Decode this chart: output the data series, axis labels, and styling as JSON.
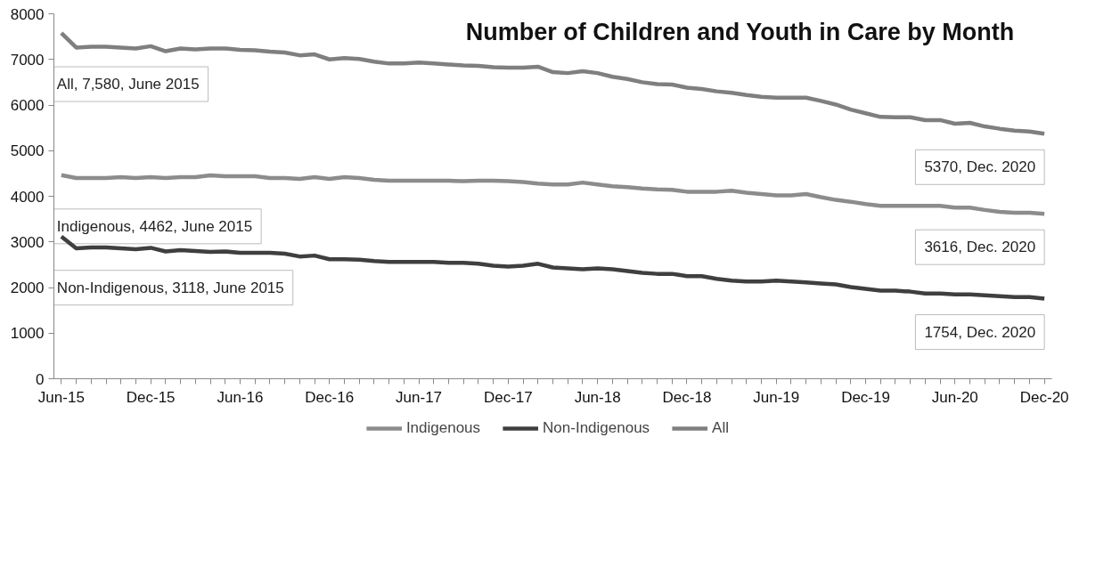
{
  "chart_data": {
    "type": "line",
    "title": "Number of Children and Youth in Care by Month",
    "categories": [
      "Jun-15",
      null,
      null,
      null,
      null,
      null,
      "Dec-15",
      null,
      null,
      null,
      null,
      null,
      "Jun-16",
      null,
      null,
      null,
      null,
      null,
      "Dec-16",
      null,
      null,
      null,
      null,
      null,
      "Jun-17",
      null,
      null,
      null,
      null,
      null,
      "Dec-17",
      null,
      null,
      null,
      null,
      null,
      "Jun-18",
      null,
      null,
      null,
      null,
      null,
      "Dec-18",
      null,
      null,
      null,
      null,
      null,
      "Jun-19",
      null,
      null,
      null,
      null,
      null,
      "Dec-19",
      null,
      null,
      null,
      null,
      null,
      "Jun-20",
      null,
      null,
      null,
      null,
      null,
      "Dec-20"
    ],
    "series": [
      {
        "name": "Indigenous",
        "color": "#8c8c8c",
        "values": [
          4462,
          4400,
          4400,
          4400,
          4420,
          4400,
          4420,
          4400,
          4420,
          4420,
          4460,
          4440,
          4440,
          4440,
          4400,
          4400,
          4380,
          4420,
          4380,
          4420,
          4400,
          4360,
          4340,
          4340,
          4340,
          4340,
          4340,
          4330,
          4340,
          4340,
          4330,
          4310,
          4280,
          4260,
          4260,
          4300,
          4260,
          4220,
          4200,
          4170,
          4150,
          4140,
          4100,
          4100,
          4100,
          4120,
          4080,
          4050,
          4020,
          4020,
          4050,
          3980,
          3920,
          3880,
          3830,
          3790,
          3790,
          3790,
          3790,
          3790,
          3750,
          3750,
          3700,
          3660,
          3640,
          3640,
          3616
        ]
      },
      {
        "name": "Non-Indigenous",
        "color": "#3f3f3f",
        "values": [
          3118,
          2860,
          2880,
          2880,
          2860,
          2840,
          2870,
          2790,
          2820,
          2800,
          2780,
          2790,
          2760,
          2760,
          2760,
          2740,
          2680,
          2700,
          2620,
          2620,
          2610,
          2580,
          2560,
          2560,
          2560,
          2560,
          2540,
          2540,
          2520,
          2480,
          2460,
          2480,
          2520,
          2440,
          2420,
          2400,
          2420,
          2400,
          2360,
          2320,
          2300,
          2300,
          2250,
          2250,
          2190,
          2150,
          2130,
          2130,
          2150,
          2130,
          2110,
          2090,
          2070,
          2010,
          1970,
          1930,
          1930,
          1910,
          1870,
          1870,
          1850,
          1850,
          1830,
          1810,
          1790,
          1790,
          1754
        ]
      },
      {
        "name": "All",
        "color": "#7f7f7f",
        "values": [
          7580,
          7260,
          7280,
          7280,
          7260,
          7240,
          7290,
          7180,
          7240,
          7220,
          7240,
          7240,
          7210,
          7200,
          7170,
          7150,
          7090,
          7110,
          7000,
          7030,
          7010,
          6950,
          6910,
          6910,
          6930,
          6910,
          6890,
          6870,
          6860,
          6830,
          6820,
          6820,
          6840,
          6720,
          6700,
          6740,
          6700,
          6620,
          6570,
          6500,
          6460,
          6450,
          6380,
          6350,
          6300,
          6270,
          6220,
          6180,
          6160,
          6160,
          6160,
          6090,
          6010,
          5900,
          5820,
          5740,
          5730,
          5730,
          5670,
          5670,
          5590,
          5610,
          5530,
          5480,
          5440,
          5420,
          5370
        ]
      }
    ],
    "annotations": [
      {
        "text": "All, 7,580, June 2015",
        "x": "Jun-15",
        "y": 7580
      },
      {
        "text": "Indigenous, 4462, June 2015",
        "x": "Jun-15",
        "y": 4462
      },
      {
        "text": "Non-Indigenous, 3118, June 2015",
        "x": "Jun-15",
        "y": 3118
      },
      {
        "text": "5370, Dec. 2020",
        "x": "Dec-20",
        "y": 5370
      },
      {
        "text": "3616, Dec. 2020",
        "x": "Dec-20",
        "y": 3616
      },
      {
        "text": "1754, Dec. 2020",
        "x": "Dec-20",
        "y": 1754
      }
    ],
    "ylim": [
      0,
      8000
    ],
    "yticks": [
      0,
      1000,
      2000,
      3000,
      4000,
      5000,
      6000,
      7000,
      8000
    ],
    "grid": false,
    "legend": "bottom",
    "marker": "none",
    "line_style": "solid"
  }
}
